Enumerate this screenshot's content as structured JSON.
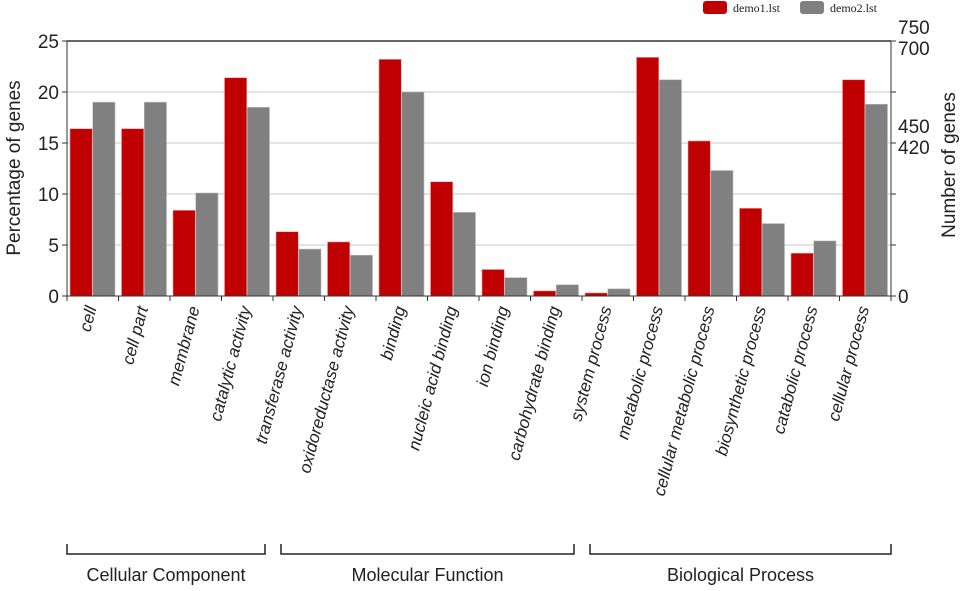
{
  "chart_data": {
    "type": "bar",
    "categories": [
      "cell",
      "cell part",
      "membrane",
      "catalytic activity",
      "transferase activity",
      "oxidoreductase activity",
      "binding",
      "nucleic acid binding",
      "ion binding",
      "carbohydrate binding",
      "system process",
      "metabolic process",
      "cellular metabolic process",
      "biosynthetic process",
      "catabolic process",
      "cellular process"
    ],
    "series": [
      {
        "name": "demo1.lst",
        "color": "#c00000",
        "values": [
          16.4,
          16.4,
          8.4,
          21.4,
          6.3,
          5.3,
          23.2,
          11.2,
          2.6,
          0.5,
          0.3,
          23.4,
          15.2,
          8.6,
          4.2,
          21.2
        ]
      },
      {
        "name": "demo2.lst",
        "color": "#808080",
        "values": [
          19.0,
          19.0,
          10.1,
          18.5,
          4.6,
          4.0,
          20.0,
          8.2,
          1.8,
          1.1,
          0.7,
          21.2,
          12.3,
          7.1,
          5.4,
          18.8
        ]
      }
    ],
    "ylabel": "Percentage of genes",
    "ylabel_right": "Number of genes",
    "ylim": [
      0,
      25
    ],
    "yticks": [
      0,
      5,
      10,
      15,
      20,
      25
    ],
    "yticks_right": [
      0,
      420,
      450,
      700,
      750
    ],
    "grid": true,
    "legend": "top-right",
    "groups": [
      {
        "label": "Cellular Component",
        "start": 0,
        "end": 3
      },
      {
        "label": "Molecular Function",
        "start": 4,
        "end": 9
      },
      {
        "label": "Biological Process",
        "start": 10,
        "end": 15
      }
    ]
  }
}
